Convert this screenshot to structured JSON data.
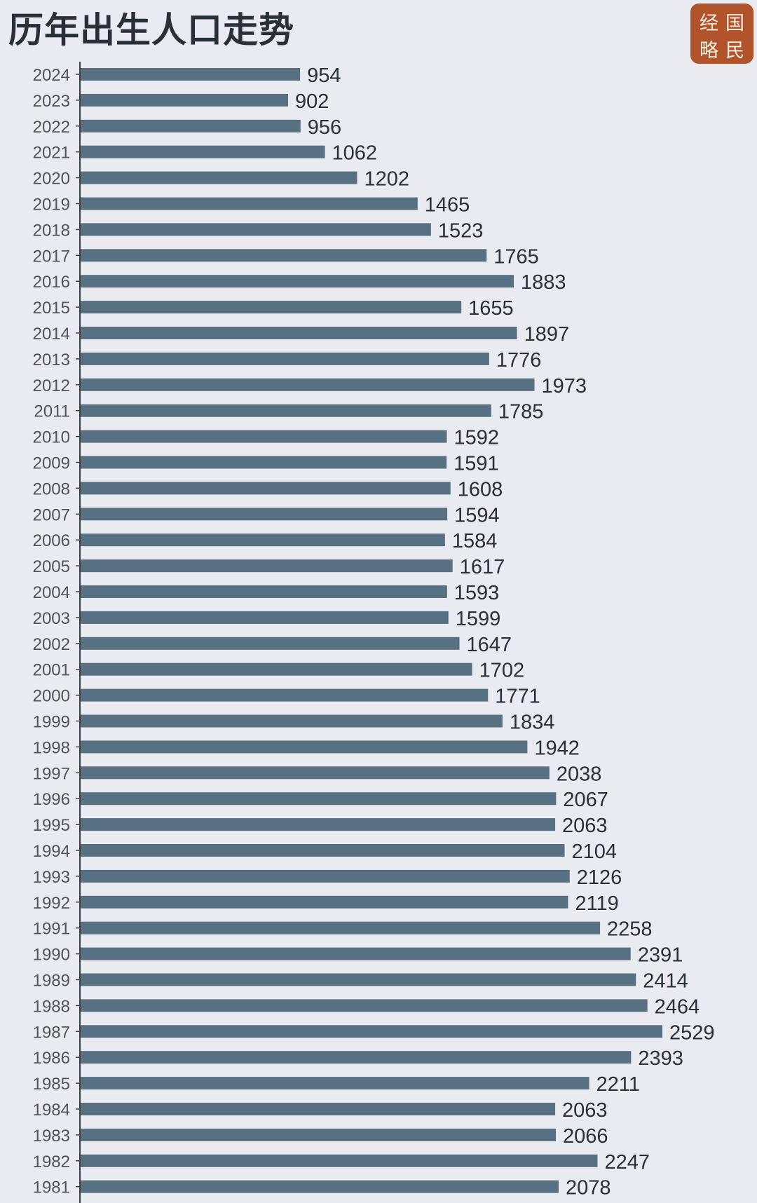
{
  "header": {
    "title": "历年出生人口走势"
  },
  "logo": {
    "chars": [
      "经",
      "国",
      "略",
      "民"
    ]
  },
  "colors": {
    "bar": "#577082",
    "background": "#e9ebf1",
    "logo": "#b2542b"
  },
  "chart_data": {
    "type": "bar",
    "orientation": "horizontal",
    "title": "历年出生人口走势",
    "categories": [
      "2024",
      "2023",
      "2022",
      "2021",
      "2020",
      "2019",
      "2018",
      "2017",
      "2016",
      "2015",
      "2014",
      "2013",
      "2012",
      "2011",
      "2010",
      "2009",
      "2008",
      "2007",
      "2006",
      "2005",
      "2004",
      "2003",
      "2002",
      "2001",
      "2000",
      "1999",
      "1998",
      "1997",
      "1996",
      "1995",
      "1994",
      "1993",
      "1992",
      "1991",
      "1990",
      "1989",
      "1988",
      "1987",
      "1986",
      "1985",
      "1984",
      "1983",
      "1982",
      "1981"
    ],
    "values": [
      954,
      902,
      956,
      1062,
      1202,
      1465,
      1523,
      1765,
      1883,
      1655,
      1897,
      1776,
      1973,
      1785,
      1592,
      1591,
      1608,
      1594,
      1584,
      1617,
      1593,
      1599,
      1647,
      1702,
      1771,
      1834,
      1942,
      2038,
      2067,
      2063,
      2104,
      2126,
      2119,
      2258,
      2391,
      2414,
      2464,
      2529,
      2393,
      2211,
      2063,
      2066,
      2247,
      2078
    ],
    "xlim": [
      0,
      2529
    ],
    "grid": false,
    "legend": "none"
  }
}
